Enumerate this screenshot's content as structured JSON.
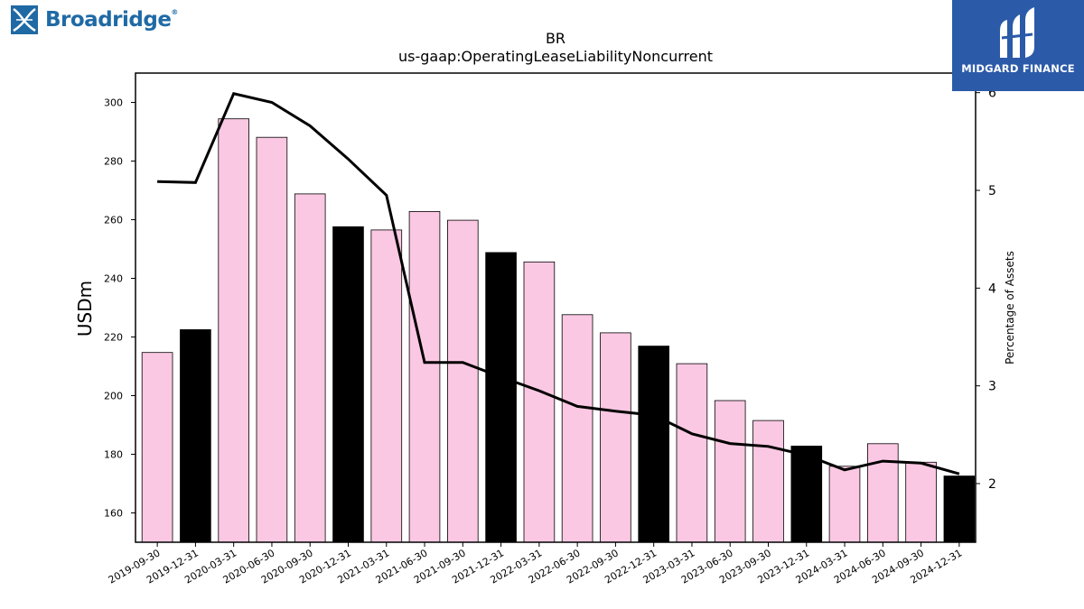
{
  "brand_left": {
    "name": "Broadridge",
    "reg": "®",
    "icon": "broadridge-logo-icon",
    "color": "#1f6aa5"
  },
  "brand_right": {
    "name": "MIDGARD FINANCE",
    "icon": "midgard-logo-icon",
    "background": "#2b5aa8"
  },
  "chart_data": {
    "type": "bar",
    "title": "BR",
    "subtitle": "us-gaap:OperatingLeaseLiabilityNoncurrent",
    "ylabel": "USDm",
    "y2label": "Percentage of Assets",
    "ylim": [
      150,
      310
    ],
    "y2lim": [
      1.4,
      6.2
    ],
    "yticks": [
      160,
      180,
      200,
      220,
      240,
      260,
      280,
      300
    ],
    "y2ticks": [
      2,
      3,
      4,
      5,
      6
    ],
    "categories": [
      "2019-09-30",
      "2019-12-31",
      "2020-03-31",
      "2020-06-30",
      "2020-09-30",
      "2020-12-31",
      "2021-03-31",
      "2021-06-30",
      "2021-09-30",
      "2021-12-31",
      "2022-03-31",
      "2022-06-30",
      "2022-09-30",
      "2022-12-31",
      "2023-03-31",
      "2023-06-30",
      "2023-09-30",
      "2023-12-31",
      "2024-03-31",
      "2024-06-30",
      "2024-09-30",
      "2024-12-31"
    ],
    "series": [
      {
        "type": "bar",
        "values": [
          214.7,
          222.5,
          294.4,
          288.1,
          268.8,
          257.6,
          256.5,
          262.8,
          259.8,
          248.8,
          245.6,
          227.6,
          221.4,
          216.9,
          210.9,
          198.3,
          191.5,
          182.8,
          175.9,
          183.6,
          177.3,
          172.6
        ]
      },
      {
        "type": "line",
        "axis": "right",
        "values": [
          5.09,
          5.08,
          5.99,
          5.9,
          5.66,
          5.32,
          4.95,
          3.24,
          3.24,
          3.09,
          2.95,
          2.79,
          2.74,
          2.7,
          2.51,
          2.41,
          2.38,
          2.29,
          2.14,
          2.23,
          2.21,
          2.1
        ]
      }
    ],
    "colors": {
      "bar": "#fbc8e3",
      "bar_highlight": "#000000",
      "line": "#000000",
      "edge": "#000000"
    },
    "grid": false
  }
}
